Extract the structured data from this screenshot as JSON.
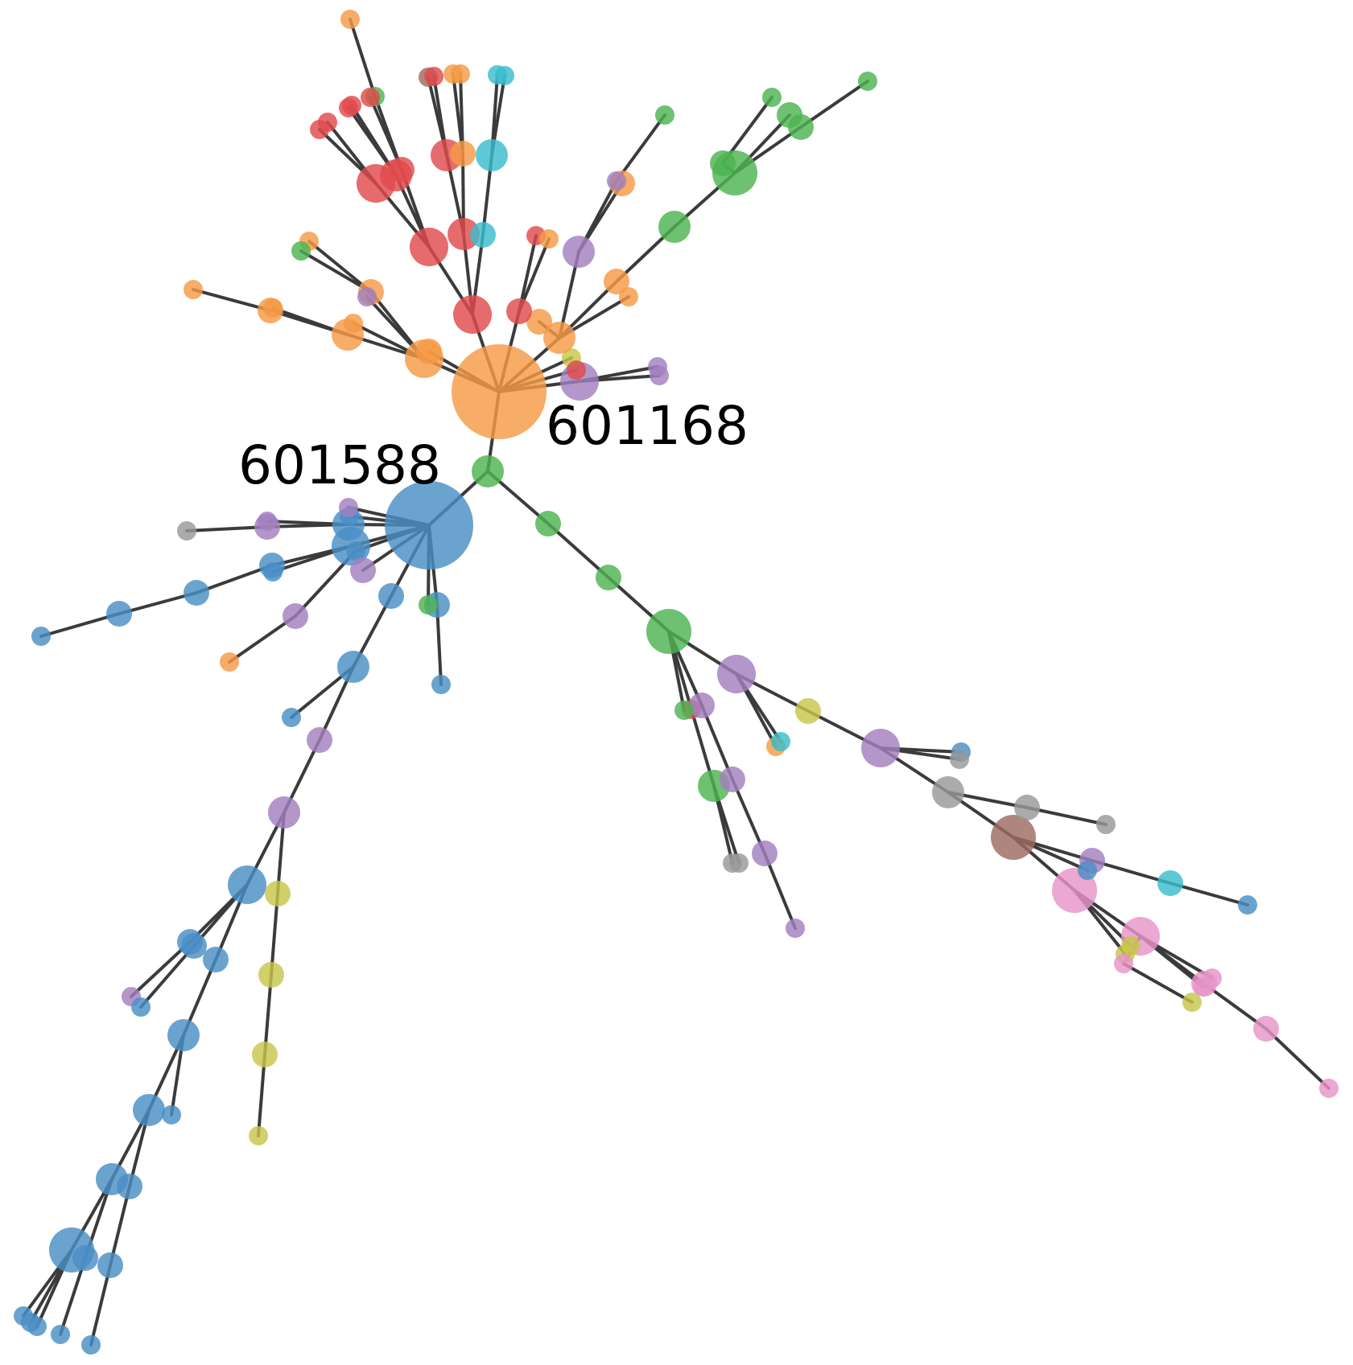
{
  "palette": {
    "blue": "#4a8fc4",
    "orange": "#f59a45",
    "green": "#4db350",
    "red": "#e04a4d",
    "purple": "#a27fbe",
    "gray": "#999999",
    "brown": "#9c6b61",
    "pink": "#e695c8",
    "olive": "#c8c64a",
    "cyan": "#3bbdcc"
  },
  "labels": {
    "node_601168": "601168",
    "node_601588": "601588"
  }
}
